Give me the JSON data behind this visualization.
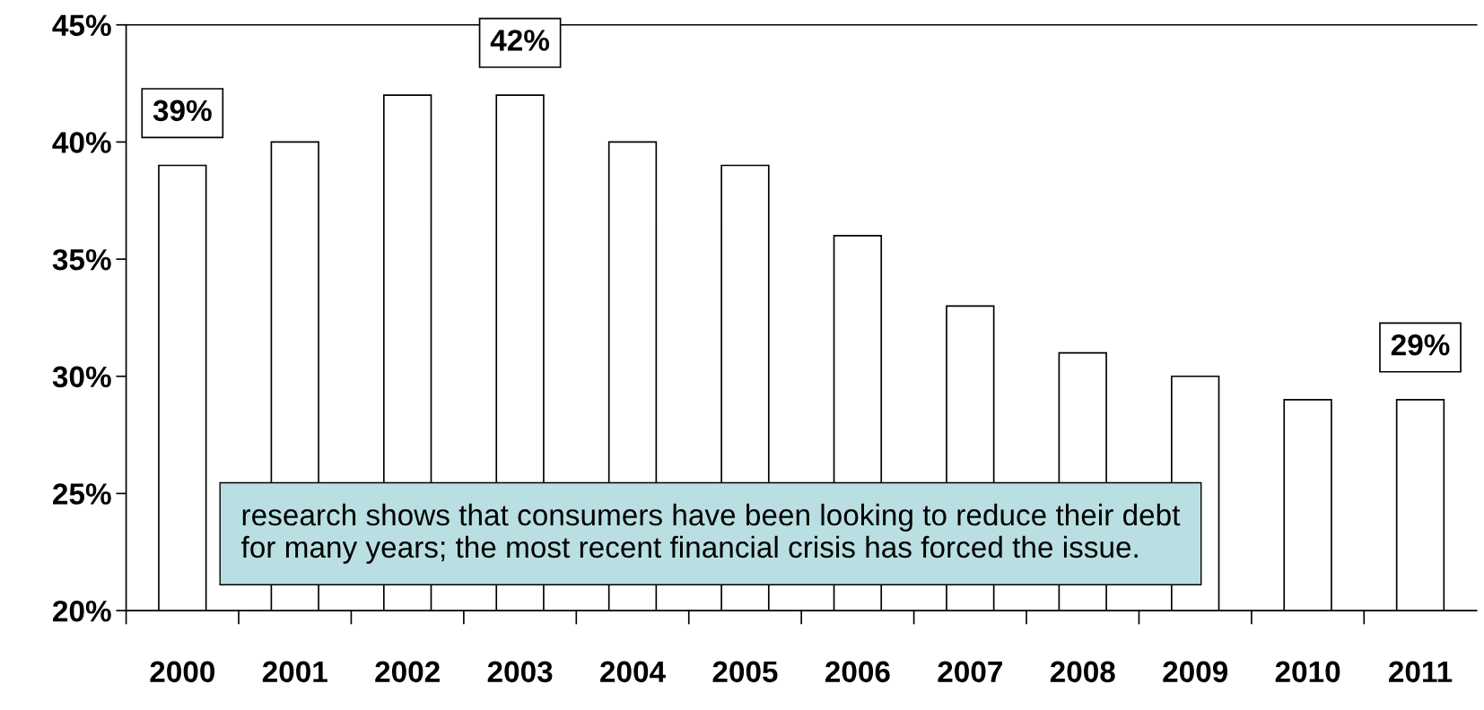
{
  "chart_data": {
    "type": "bar",
    "categories": [
      "2000",
      "2001",
      "2002",
      "2003",
      "2004",
      "2005",
      "2006",
      "2007",
      "2008",
      "2009",
      "2010",
      "2011"
    ],
    "values": [
      39,
      40,
      42,
      42,
      40,
      39,
      36,
      33,
      31,
      30,
      29,
      29
    ],
    "value_labels": [
      "39%",
      null,
      null,
      "42%",
      null,
      null,
      null,
      null,
      null,
      null,
      null,
      "29%"
    ],
    "color": "#ffffff",
    "ylim": [
      20,
      45
    ],
    "yticks": [
      {
        "value": 20,
        "label": "20%"
      },
      {
        "value": 25,
        "label": "25%"
      },
      {
        "value": 30,
        "label": "30%"
      },
      {
        "value": 35,
        "label": "35%"
      },
      {
        "value": 40,
        "label": "40%"
      },
      {
        "value": 45,
        "label": "45%"
      }
    ],
    "annotations": [
      "research shows that consumers have been looking to reduce their debt for many years; the most recent financial crisis has forced the issue."
    ],
    "grid": false,
    "legend": false
  }
}
